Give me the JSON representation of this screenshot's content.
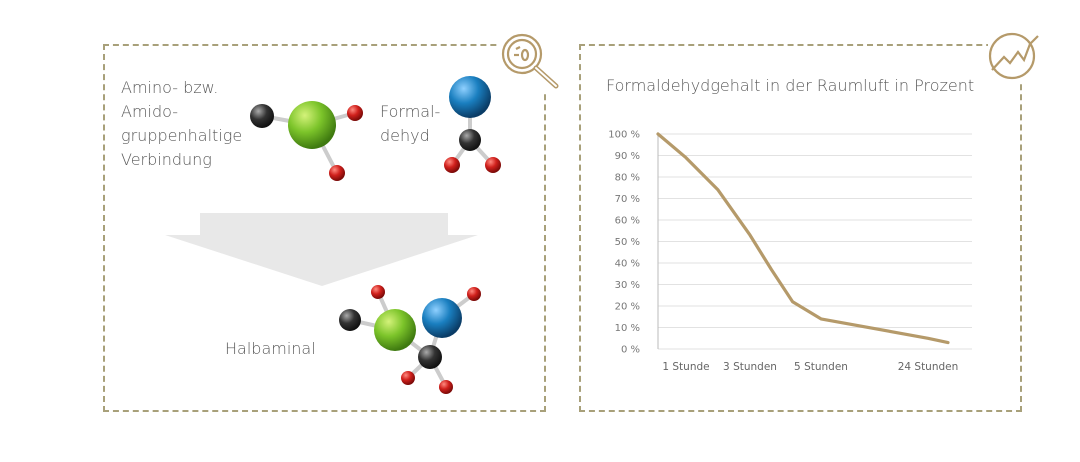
{
  "diagram": {
    "reactant_1_label": [
      "Amino- bzw.",
      "Amido-",
      "gruppenhaltige",
      "Verbindung"
    ],
    "reactant_2_label": [
      "Formal-",
      "dehyd"
    ],
    "product_label": "Halbaminal",
    "icons": [
      "magnifier-icon",
      "trend-chart-icon"
    ],
    "colors": {
      "border": "#a8a07a",
      "accent": "#b59a6a",
      "green_atom": "#7cc42a",
      "blue_atom": "#1a7fc0",
      "red_atom": "#d0201c",
      "black_atom": "#333333",
      "arrow": "#e6e6e6"
    }
  },
  "chart_data": {
    "type": "line",
    "title": "Formaldehydgehalt in der Raumluft in Prozent",
    "xlabel": "",
    "ylabel": "",
    "y_ticks": [
      "0 %",
      "10 %",
      "20 %",
      "30 %",
      "40 %",
      "50 %",
      "60 %",
      "70 %",
      "80 %",
      "90 %",
      "100 %"
    ],
    "ylim": [
      0,
      100
    ],
    "x_ticks": [
      {
        "label": "1 Stunde",
        "hours": 1
      },
      {
        "label": "3 Stunden",
        "hours": 3
      },
      {
        "label": "5 Stunden",
        "hours": 5
      },
      {
        "label": "24 Stunden",
        "hours": 24
      }
    ],
    "grid": true,
    "color": "#b59a6a",
    "series": [
      {
        "points": [
          {
            "x": 0,
            "y": 100
          },
          {
            "x": 1,
            "y": 89
          },
          {
            "x": 2,
            "y": 74
          },
          {
            "x": 3,
            "y": 53
          },
          {
            "x": 3.6,
            "y": 37
          },
          {
            "x": 4.2,
            "y": 22
          },
          {
            "x": 5,
            "y": 14
          },
          {
            "x": 24,
            "y": 5
          },
          {
            "x": 26,
            "y": 3
          }
        ]
      }
    ]
  }
}
